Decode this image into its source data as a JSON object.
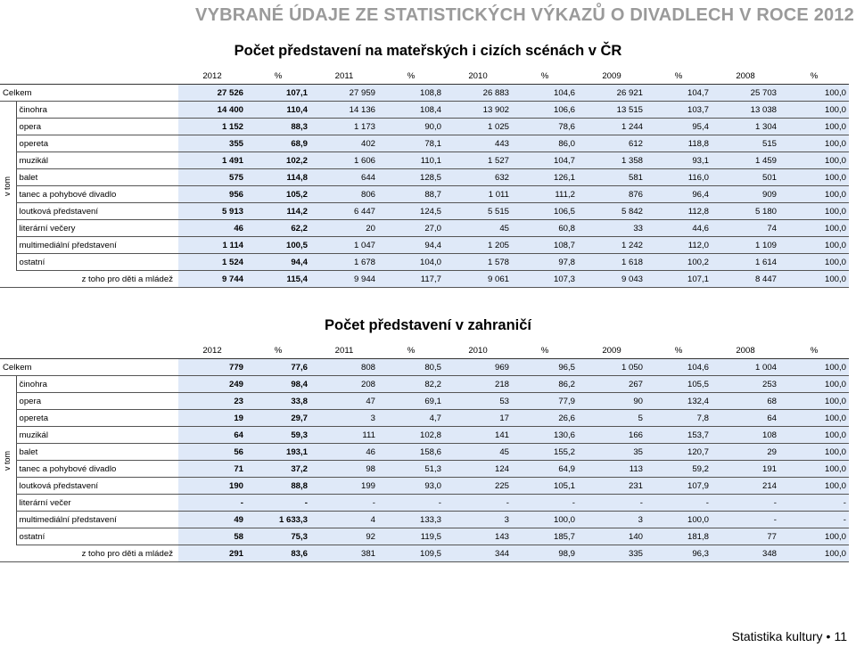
{
  "header": {
    "title": "VYBRANÉ ÚDAJE ZE STATISTICKÝCH VÝKAZŮ O DIVADLECH V ROCE 2012"
  },
  "columns": [
    "2012",
    "%",
    "2011",
    "%",
    "2010",
    "%",
    "2009",
    "%",
    "2008",
    "%"
  ],
  "vtom_label": "v tom",
  "tables": [
    {
      "title": "Počet představení na mateřských i cizích scénách v ČR",
      "total": {
        "label": "Celkem",
        "values": [
          "27 526",
          "107,1",
          "27 959",
          "108,8",
          "26 883",
          "104,6",
          "26 921",
          "104,7",
          "25 703",
          "100,0"
        ]
      },
      "rows": [
        {
          "label": "činohra",
          "values": [
            "14 400",
            "110,4",
            "14 136",
            "108,4",
            "13 902",
            "106,6",
            "13 515",
            "103,7",
            "13 038",
            "100,0"
          ]
        },
        {
          "label": "opera",
          "values": [
            "1 152",
            "88,3",
            "1 173",
            "90,0",
            "1 025",
            "78,6",
            "1 244",
            "95,4",
            "1 304",
            "100,0"
          ]
        },
        {
          "label": "opereta",
          "values": [
            "355",
            "68,9",
            "402",
            "78,1",
            "443",
            "86,0",
            "612",
            "118,8",
            "515",
            "100,0"
          ]
        },
        {
          "label": "muzikál",
          "values": [
            "1 491",
            "102,2",
            "1 606",
            "110,1",
            "1 527",
            "104,7",
            "1 358",
            "93,1",
            "1 459",
            "100,0"
          ]
        },
        {
          "label": "balet",
          "values": [
            "575",
            "114,8",
            "644",
            "128,5",
            "632",
            "126,1",
            "581",
            "116,0",
            "501",
            "100,0"
          ]
        },
        {
          "label": "tanec a pohybové divadlo",
          "values": [
            "956",
            "105,2",
            "806",
            "88,7",
            "1 011",
            "111,2",
            "876",
            "96,4",
            "909",
            "100,0"
          ]
        },
        {
          "label": "loutková představení",
          "values": [
            "5 913",
            "114,2",
            "6 447",
            "124,5",
            "5 515",
            "106,5",
            "5 842",
            "112,8",
            "5 180",
            "100,0"
          ]
        },
        {
          "label": "literární večery",
          "values": [
            "46",
            "62,2",
            "20",
            "27,0",
            "45",
            "60,8",
            "33",
            "44,6",
            "74",
            "100,0"
          ]
        },
        {
          "label": "multimediální představení",
          "values": [
            "1 114",
            "100,5",
            "1 047",
            "94,4",
            "1 205",
            "108,7",
            "1 242",
            "112,0",
            "1 109",
            "100,0"
          ]
        },
        {
          "label": "ostatní",
          "values": [
            "1 524",
            "94,4",
            "1 678",
            "104,0",
            "1 578",
            "97,8",
            "1 618",
            "100,2",
            "1 614",
            "100,0"
          ]
        }
      ],
      "sub": {
        "label": "z toho pro děti a mládež",
        "values": [
          "9 744",
          "115,4",
          "9 944",
          "117,7",
          "9 061",
          "107,3",
          "9 043",
          "107,1",
          "8 447",
          "100,0"
        ]
      }
    },
    {
      "title": "Počet představení v zahraničí",
      "total": {
        "label": "Celkem",
        "values": [
          "779",
          "77,6",
          "808",
          "80,5",
          "969",
          "96,5",
          "1 050",
          "104,6",
          "1 004",
          "100,0"
        ]
      },
      "rows": [
        {
          "label": "činohra",
          "values": [
            "249",
            "98,4",
            "208",
            "82,2",
            "218",
            "86,2",
            "267",
            "105,5",
            "253",
            "100,0"
          ]
        },
        {
          "label": "opera",
          "values": [
            "23",
            "33,8",
            "47",
            "69,1",
            "53",
            "77,9",
            "90",
            "132,4",
            "68",
            "100,0"
          ]
        },
        {
          "label": "opereta",
          "values": [
            "19",
            "29,7",
            "3",
            "4,7",
            "17",
            "26,6",
            "5",
            "7,8",
            "64",
            "100,0"
          ]
        },
        {
          "label": "muzikál",
          "values": [
            "64",
            "59,3",
            "111",
            "102,8",
            "141",
            "130,6",
            "166",
            "153,7",
            "108",
            "100,0"
          ]
        },
        {
          "label": "balet",
          "values": [
            "56",
            "193,1",
            "46",
            "158,6",
            "45",
            "155,2",
            "35",
            "120,7",
            "29",
            "100,0"
          ]
        },
        {
          "label": "tanec a pohybové divadlo",
          "values": [
            "71",
            "37,2",
            "98",
            "51,3",
            "124",
            "64,9",
            "113",
            "59,2",
            "191",
            "100,0"
          ]
        },
        {
          "label": "loutková představení",
          "values": [
            "190",
            "88,8",
            "199",
            "93,0",
            "225",
            "105,1",
            "231",
            "107,9",
            "214",
            "100,0"
          ]
        },
        {
          "label": "literární večer",
          "values": [
            "-",
            "-",
            "-",
            "-",
            "-",
            "-",
            "-",
            "-",
            "-",
            "-"
          ]
        },
        {
          "label": "multimediální představení",
          "values": [
            "49",
            "1 633,3",
            "4",
            "133,3",
            "3",
            "100,0",
            "3",
            "100,0",
            "-",
            "-"
          ]
        },
        {
          "label": "ostatní",
          "values": [
            "58",
            "75,3",
            "92",
            "119,5",
            "143",
            "185,7",
            "140",
            "181,8",
            "77",
            "100,0"
          ]
        }
      ],
      "sub": {
        "label": "z toho pro děti a mládež",
        "values": [
          "291",
          "83,6",
          "381",
          "109,5",
          "344",
          "98,9",
          "335",
          "96,3",
          "348",
          "100,0"
        ]
      }
    }
  ],
  "footer": {
    "text": "Statistika kultury",
    "separator": "•",
    "page": "11"
  }
}
